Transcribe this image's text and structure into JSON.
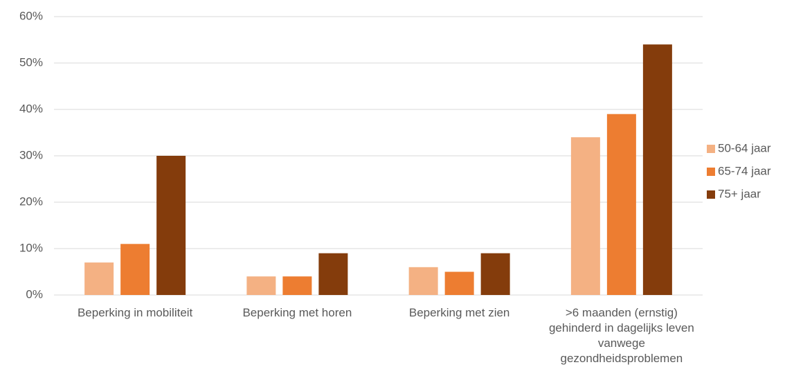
{
  "chart_data": {
    "type": "bar",
    "categories": [
      "Beperking in mobiliteit",
      "Beperking met horen",
      "Beperking met zien",
      ">6 maanden (ernstig) gehinderd in dagelijks leven vanwege gezondheidsproblemen"
    ],
    "series": [
      {
        "name": "50-64 jaar",
        "color": "#f4b183",
        "values": [
          7,
          4,
          6,
          34
        ]
      },
      {
        "name": "65-74 jaar",
        "color": "#ed7d31",
        "values": [
          11,
          4,
          5,
          39
        ]
      },
      {
        "name": "75+ jaar",
        "color": "#843c0c",
        "values": [
          30,
          9,
          9,
          54
        ]
      }
    ],
    "ylim": [
      0,
      60
    ],
    "yticks": [
      {
        "value": 0,
        "label": "0%"
      },
      {
        "value": 10,
        "label": "10%"
      },
      {
        "value": 20,
        "label": "20%"
      },
      {
        "value": 30,
        "label": "30%"
      },
      {
        "value": 40,
        "label": "40%"
      },
      {
        "value": 50,
        "label": "50%"
      },
      {
        "value": 60,
        "label": "60%"
      }
    ],
    "grid": true,
    "legend": "right"
  }
}
